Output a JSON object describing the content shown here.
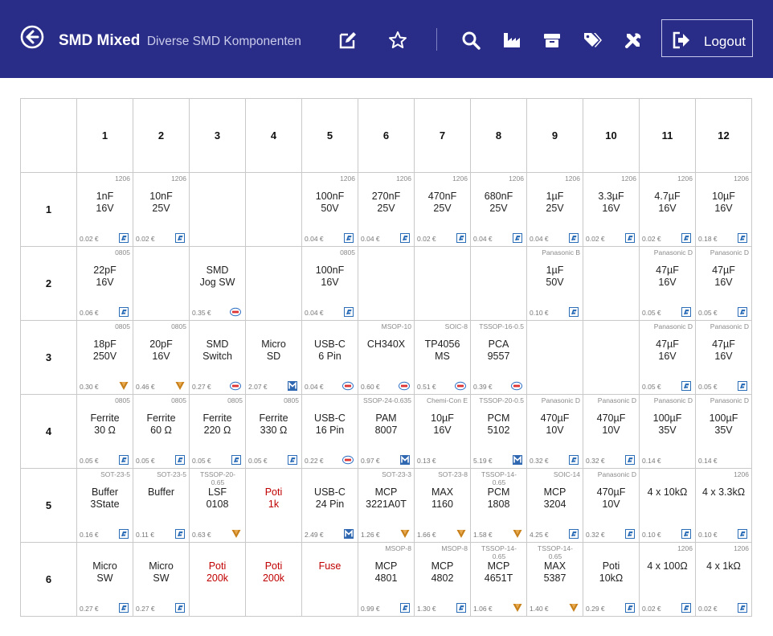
{
  "header": {
    "title": "SMD Mixed",
    "subtitle": "Diverse SMD Komponenten",
    "logout_label": "Logout",
    "icons": [
      "back-icon",
      "edit-icon",
      "star-icon",
      "search-icon",
      "chart-icon",
      "box-icon",
      "tags-icon",
      "tools-icon",
      "logout-icon"
    ]
  },
  "columns": [
    "1",
    "2",
    "3",
    "4",
    "5",
    "6",
    "7",
    "8",
    "9",
    "10",
    "11",
    "12"
  ],
  "rows": [
    "1",
    "2",
    "3",
    "4",
    "5",
    "6"
  ],
  "supplier_icons": {
    "R": "reichelt-icon",
    "L": "lcsc-icon",
    "V": "vendor-v-icon",
    "M": "mouser-icon"
  },
  "cells": [
    [
      {
        "pkg": "1206",
        "value": "1nF\n16V",
        "price": "0.02 €",
        "icon": "R"
      },
      {
        "pkg": "1206",
        "value": "10nF\n25V",
        "price": "0.02 €",
        "icon": "R"
      },
      {},
      {},
      {
        "pkg": "1206",
        "value": "100nF\n50V",
        "price": "0.04 €",
        "icon": "R"
      },
      {
        "pkg": "1206",
        "value": "270nF\n25V",
        "price": "0.04 €",
        "icon": "R"
      },
      {
        "pkg": "1206",
        "value": "470nF\n25V",
        "price": "0.02 €",
        "icon": "R"
      },
      {
        "pkg": "1206",
        "value": "680nF\n25V",
        "price": "0.04 €",
        "icon": "R"
      },
      {
        "pkg": "1206",
        "value": "1µF\n25V",
        "price": "0.04 €",
        "icon": "R"
      },
      {
        "pkg": "1206",
        "value": "3.3µF\n16V",
        "price": "0.02 €",
        "icon": "R"
      },
      {
        "pkg": "1206",
        "value": "4.7µF\n16V",
        "price": "0.02 €",
        "icon": "R"
      },
      {
        "pkg": "1206",
        "value": "10µF\n16V",
        "price": "0.18 €",
        "icon": "R"
      }
    ],
    [
      {
        "pkg": "0805",
        "value": "22pF\n16V",
        "price": "0.06 €",
        "icon": "R"
      },
      {},
      {
        "pkg": "",
        "value": "SMD\nJog SW",
        "price": "0.35 €",
        "icon": "L"
      },
      {},
      {
        "pkg": "0805",
        "value": "100nF\n16V",
        "price": "0.04 €",
        "icon": "R"
      },
      {},
      {},
      {},
      {
        "pkg": "Panasonic B",
        "value": "1µF\n50V",
        "price": "0.10 €",
        "icon": "R"
      },
      {},
      {
        "pkg": "Panasonic D",
        "value": "47µF\n16V",
        "price": "0.05 €",
        "icon": "R"
      },
      {
        "pkg": "Panasonic D",
        "value": "47µF\n16V",
        "price": "0.05 €",
        "icon": "R"
      }
    ],
    [
      {
        "pkg": "0805",
        "value": "18pF\n250V",
        "price": "0.30 €",
        "icon": "V"
      },
      {
        "pkg": "0805",
        "value": "20pF\n16V",
        "price": "0.46 €",
        "icon": "V"
      },
      {
        "pkg": "",
        "value": "SMD\nSwitch",
        "price": "0.27 €",
        "icon": "L"
      },
      {
        "pkg": "",
        "value": "Micro\nSD",
        "price": "2.07 €",
        "icon": "M"
      },
      {
        "pkg": "",
        "value": "USB-C\n6 Pin",
        "price": "0.04 €",
        "icon": "L"
      },
      {
        "pkg": "MSOP-10",
        "value": "CH340X",
        "price": "0.60 €",
        "icon": "L"
      },
      {
        "pkg": "SOIC-8",
        "value": "TP4056\nMS",
        "price": "0.51 €",
        "icon": "L"
      },
      {
        "pkg": "TSSOP-16-0.5",
        "value": "PCA\n9557",
        "price": "0.39 €",
        "icon": "L"
      },
      {},
      {},
      {
        "pkg": "Panasonic D",
        "value": "47µF\n16V",
        "price": "0.05 €",
        "icon": "R"
      },
      {
        "pkg": "Panasonic D",
        "value": "47µF\n16V",
        "price": "0.05 €",
        "icon": "R"
      }
    ],
    [
      {
        "pkg": "0805",
        "value": "Ferrite\n30 Ω",
        "price": "0.05 €",
        "icon": "R"
      },
      {
        "pkg": "0805",
        "value": "Ferrite\n60 Ω",
        "price": "0.05 €",
        "icon": "R"
      },
      {
        "pkg": "0805",
        "value": "Ferrite\n220 Ω",
        "price": "0.05 €",
        "icon": "R"
      },
      {
        "pkg": "0805",
        "value": "Ferrite\n330 Ω",
        "price": "0.05 €",
        "icon": "R"
      },
      {
        "pkg": "",
        "value": "USB-C\n16 Pin",
        "price": "0.22 €",
        "icon": "L"
      },
      {
        "pkg": "SSOP-24-0.635",
        "value": "PAM\n8007",
        "price": "0.97 €",
        "icon": "M"
      },
      {
        "pkg": "Chemi-Con E",
        "value": "10µF\n16V",
        "price": "0.13 €",
        "icon": ""
      },
      {
        "pkg": "TSSOP-20-0.5",
        "value": "PCM\n5102",
        "price": "5.19 €",
        "icon": "M"
      },
      {
        "pkg": "Panasonic D",
        "value": "470µF\n10V",
        "price": "0.32 €",
        "icon": "R"
      },
      {
        "pkg": "Panasonic D",
        "value": "470µF\n10V",
        "price": "0.32 €",
        "icon": "R"
      },
      {
        "pkg": "Panasonic D",
        "value": "100µF\n35V",
        "price": "0.14 €",
        "icon": ""
      },
      {
        "pkg": "Panasonic D",
        "value": "100µF\n35V",
        "price": "0.14 €",
        "icon": ""
      }
    ],
    [
      {
        "pkg": "SOT-23-5",
        "value": "Buffer\n3State",
        "price": "0.16 €",
        "icon": "R"
      },
      {
        "pkg": "SOT-23-5",
        "value": "Buffer",
        "price": "0.11 €",
        "icon": "R"
      },
      {
        "pkg": "TSSOP-20-\n0.65",
        "value": "LSF\n0108",
        "price": "0.63 €",
        "icon": "V",
        "wrap": true
      },
      {
        "pkg": "",
        "value": "Poti\n1k",
        "price": "",
        "icon": "",
        "red": true
      },
      {
        "pkg": "",
        "value": "USB-C\n24 Pin",
        "price": "2.49 €",
        "icon": "M"
      },
      {
        "pkg": "SOT-23-3",
        "value": "MCP\n3221A0T",
        "price": "1.26 €",
        "icon": "V"
      },
      {
        "pkg": "SOT-23-8",
        "value": "MAX\n1160",
        "price": "1.66 €",
        "icon": "V"
      },
      {
        "pkg": "TSSOP-14-\n0.65",
        "value": "PCM\n1808",
        "price": "1.58 €",
        "icon": "V",
        "wrap": true
      },
      {
        "pkg": "SOIC-14",
        "value": "MCP\n3204",
        "price": "4.25 €",
        "icon": "R"
      },
      {
        "pkg": "Panasonic D",
        "value": "470µF\n10V",
        "price": "0.32 €",
        "icon": "R"
      },
      {
        "pkg": "",
        "value": "4 x 10kΩ",
        "price": "0.10 €",
        "icon": "R"
      },
      {
        "pkg": "1206",
        "value": "4 x 3.3kΩ",
        "price": "0.10 €",
        "icon": "R"
      }
    ],
    [
      {
        "pkg": "",
        "value": "Micro\nSW",
        "price": "0.27 €",
        "icon": "R"
      },
      {
        "pkg": "",
        "value": "Micro\nSW",
        "price": "0.27 €",
        "icon": "R"
      },
      {
        "pkg": "",
        "value": "Poti\n200k",
        "price": "",
        "icon": "",
        "red": true
      },
      {
        "pkg": "",
        "value": "Poti\n200k",
        "price": "",
        "icon": "",
        "red": true
      },
      {
        "pkg": "",
        "value": "Fuse",
        "price": "",
        "icon": "",
        "red": true
      },
      {
        "pkg": "MSOP-8",
        "value": "MCP\n4801",
        "price": "0.99 €",
        "icon": "R"
      },
      {
        "pkg": "MSOP-8",
        "value": "MCP\n4802",
        "price": "1.30 €",
        "icon": "R"
      },
      {
        "pkg": "TSSOP-14-\n0.65",
        "value": "MCP\n4651T",
        "price": "1.06 €",
        "icon": "V",
        "wrap": true
      },
      {
        "pkg": "TSSOP-14-\n0.65",
        "value": "MAX\n5387",
        "price": "1.40 €",
        "icon": "V",
        "wrap": true
      },
      {
        "pkg": "",
        "value": "Poti\n10kΩ",
        "price": "0.29 €",
        "icon": "R"
      },
      {
        "pkg": "1206",
        "value": "4 x 100Ω",
        "price": "0.02 €",
        "icon": "R"
      },
      {
        "pkg": "1206",
        "value": "4 x 1kΩ",
        "price": "0.02 €",
        "icon": "R"
      }
    ]
  ]
}
